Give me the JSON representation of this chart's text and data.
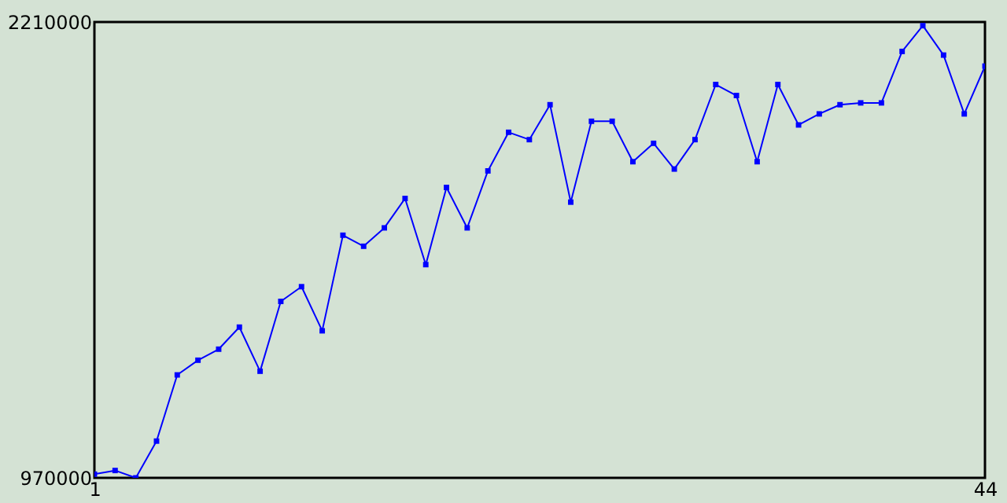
{
  "chart_data": {
    "type": "line",
    "x": [
      1,
      2,
      3,
      4,
      5,
      6,
      7,
      8,
      9,
      10,
      11,
      12,
      13,
      14,
      15,
      16,
      17,
      18,
      19,
      20,
      21,
      22,
      23,
      24,
      25,
      26,
      27,
      28,
      29,
      30,
      31,
      32,
      33,
      34,
      35,
      36,
      37,
      38,
      39,
      40,
      41,
      42,
      43,
      44
    ],
    "series": [
      {
        "color": "#0000ff",
        "values": [
          980000,
          990000,
          970000,
          1070000,
          1250000,
          1290000,
          1320000,
          1380000,
          1260000,
          1450000,
          1490000,
          1370000,
          1630000,
          1600000,
          1650000,
          1730000,
          1550000,
          1760000,
          1650000,
          1805000,
          1910000,
          1890000,
          1985000,
          1720000,
          1940000,
          1940000,
          1830000,
          1880000,
          1810000,
          1890000,
          2040000,
          2010000,
          1830000,
          2040000,
          1930000,
          1960000,
          1985000,
          1990000,
          1990000,
          2130000,
          2200000,
          2120000,
          1960000,
          2090000
        ]
      }
    ],
    "xlim": [
      1,
      44
    ],
    "xticks": [
      1,
      44
    ],
    "ylim": [
      970000,
      2210000
    ],
    "yticks": [
      970000,
      2210000
    ],
    "grid": false,
    "marker": "square",
    "line_style": "solid"
  }
}
